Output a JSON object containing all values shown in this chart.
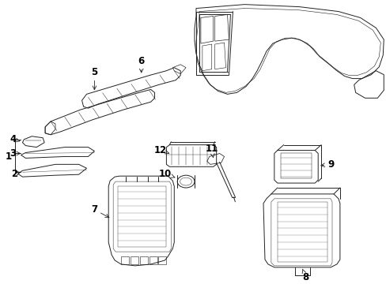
{
  "bg_color": "#ffffff",
  "lc": "#222222",
  "tc": "#000000",
  "figsize": [
    4.89,
    3.6
  ],
  "dpi": 100,
  "lw": 0.7,
  "fs": 8.5
}
